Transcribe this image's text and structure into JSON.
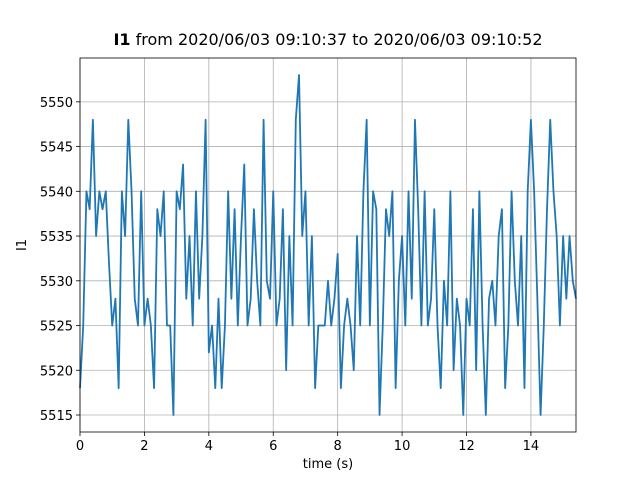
{
  "chart_data": {
    "type": "line",
    "title": {
      "variable": "I1",
      "text": "from 2020/06/03 09:10:37 to 2020/06/03 09:10:52"
    },
    "xlabel": "time (s)",
    "ylabel": "I1",
    "xlim": [
      0,
      15.4
    ],
    "ylim": [
      5513.1,
      5554.9
    ],
    "xticks": [
      0,
      2,
      4,
      6,
      8,
      10,
      12,
      14
    ],
    "yticks": [
      5515,
      5520,
      5525,
      5530,
      5535,
      5540,
      5545,
      5550
    ],
    "grid": true,
    "x": [
      0.0,
      0.1,
      0.2,
      0.3,
      0.4,
      0.5,
      0.6,
      0.7,
      0.8,
      0.9,
      1.0,
      1.1,
      1.2,
      1.3,
      1.4,
      1.5,
      1.6,
      1.7,
      1.8,
      1.9,
      2.0,
      2.1,
      2.2,
      2.3,
      2.4,
      2.5,
      2.6,
      2.7,
      2.8,
      2.9,
      3.0,
      3.1,
      3.2,
      3.3,
      3.4,
      3.5,
      3.6,
      3.7,
      3.8,
      3.9,
      4.0,
      4.1,
      4.2,
      4.3,
      4.4,
      4.5,
      4.6,
      4.7,
      4.8,
      4.9,
      5.0,
      5.1,
      5.2,
      5.3,
      5.4,
      5.5,
      5.6,
      5.7,
      5.8,
      5.9,
      6.0,
      6.1,
      6.2,
      6.3,
      6.4,
      6.5,
      6.6,
      6.7,
      6.8,
      6.9,
      7.0,
      7.1,
      7.2,
      7.3,
      7.4,
      7.5,
      7.6,
      7.7,
      7.8,
      7.9,
      8.0,
      8.1,
      8.2,
      8.3,
      8.4,
      8.5,
      8.6,
      8.7,
      8.8,
      8.9,
      9.0,
      9.1,
      9.2,
      9.3,
      9.4,
      9.5,
      9.6,
      9.7,
      9.8,
      9.9,
      10.0,
      10.1,
      10.2,
      10.3,
      10.4,
      10.5,
      10.6,
      10.7,
      10.8,
      10.9,
      11.0,
      11.1,
      11.2,
      11.3,
      11.4,
      11.5,
      11.6,
      11.7,
      11.8,
      11.9,
      12.0,
      12.1,
      12.2,
      12.3,
      12.4,
      12.5,
      12.6,
      12.7,
      12.8,
      12.9,
      13.0,
      13.1,
      13.2,
      13.3,
      13.4,
      13.5,
      13.6,
      13.7,
      13.8,
      13.9,
      14.0,
      14.1,
      14.2,
      14.3,
      14.4,
      14.5,
      14.6,
      14.7,
      14.8,
      14.9,
      15.0,
      15.1,
      15.2,
      15.3,
      15.4
    ],
    "series": [
      {
        "name": "I1",
        "color": "#1f77b4",
        "values": [
          5518,
          5525,
          5540,
          5538,
          5548,
          5535,
          5540,
          5538,
          5540,
          5532,
          5525,
          5528,
          5518,
          5540,
          5535,
          5548,
          5540,
          5528,
          5525,
          5540,
          5525,
          5528,
          5525,
          5518,
          5538,
          5535,
          5540,
          5525,
          5525,
          5515,
          5540,
          5538,
          5543,
          5528,
          5535,
          5525,
          5540,
          5528,
          5535,
          5548,
          5522,
          5525,
          5518,
          5528,
          5518,
          5525,
          5540,
          5528,
          5538,
          5525,
          5535,
          5543,
          5525,
          5528,
          5538,
          5530,
          5525,
          5548,
          5530,
          5528,
          5540,
          5525,
          5528,
          5538,
          5520,
          5535,
          5525,
          5548,
          5553,
          5535,
          5540,
          5525,
          5535,
          5518,
          5525,
          5525,
          5525,
          5530,
          5525,
          5528,
          5533,
          5518,
          5525,
          5528,
          5525,
          5520,
          5535,
          5525,
          5540,
          5548,
          5525,
          5540,
          5538,
          5515,
          5525,
          5538,
          5535,
          5540,
          5518,
          5530,
          5535,
          5525,
          5540,
          5528,
          5548,
          5538,
          5525,
          5540,
          5525,
          5528,
          5538,
          5525,
          5518,
          5530,
          5525,
          5540,
          5520,
          5528,
          5525,
          5515,
          5528,
          5525,
          5538,
          5520,
          5540,
          5525,
          5515,
          5528,
          5530,
          5525,
          5535,
          5538,
          5518,
          5525,
          5540,
          5530,
          5525,
          5535,
          5518,
          5540,
          5548,
          5540,
          5528,
          5515,
          5525,
          5538,
          5548,
          5540,
          5535,
          5525,
          5535,
          5528,
          5535,
          5530,
          5528
        ]
      }
    ]
  }
}
